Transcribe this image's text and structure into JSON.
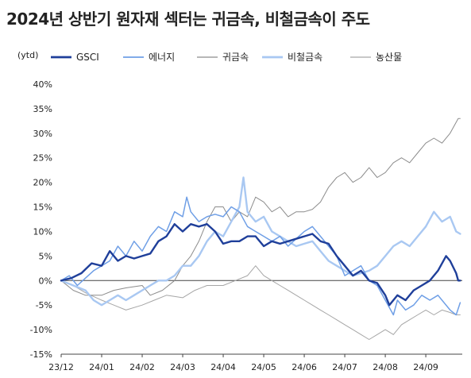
{
  "title": "2024년 상반기 원자재 섹터는 귀금속, 비철금속이 주도",
  "chart_data": {
    "type": "line",
    "y_unit": "(ytd)",
    "ylim": [
      -15,
      40
    ],
    "yticks": [
      -15,
      -10,
      -5,
      0,
      5,
      10,
      15,
      20,
      25,
      30,
      35,
      40
    ],
    "ytick_labels": [
      "-15%",
      "-10%",
      "-5%",
      "0%",
      "5%",
      "10%",
      "15%",
      "20%",
      "25%",
      "30%",
      "35%",
      "40%"
    ],
    "x_labels": [
      "23/12",
      "24/01",
      "24/02",
      "24/03",
      "24/04",
      "24/05",
      "24/06",
      "24/07",
      "24/08",
      "24/09"
    ],
    "x_label_positions": [
      0,
      1,
      2,
      3,
      4,
      5,
      6,
      7,
      8,
      9
    ],
    "xlim": [
      0,
      9.9
    ],
    "legend_position": "top",
    "series": [
      {
        "name": "GSCI",
        "color": "#1f3f9a",
        "width": 2.4,
        "points": [
          [
            0,
            0
          ],
          [
            0.25,
            0.5
          ],
          [
            0.5,
            1.5
          ],
          [
            0.75,
            3.5
          ],
          [
            1,
            3
          ],
          [
            1.2,
            6
          ],
          [
            1.4,
            4
          ],
          [
            1.6,
            5
          ],
          [
            1.8,
            4.5
          ],
          [
            2,
            5
          ],
          [
            2.2,
            5.5
          ],
          [
            2.4,
            8
          ],
          [
            2.6,
            9
          ],
          [
            2.8,
            11.5
          ],
          [
            3,
            10
          ],
          [
            3.2,
            11.5
          ],
          [
            3.4,
            11
          ],
          [
            3.6,
            11.5
          ],
          [
            3.8,
            10
          ],
          [
            4,
            7.5
          ],
          [
            4.2,
            8
          ],
          [
            4.4,
            8
          ],
          [
            4.6,
            9
          ],
          [
            4.8,
            9
          ],
          [
            5,
            7
          ],
          [
            5.2,
            8
          ],
          [
            5.4,
            7.5
          ],
          [
            5.6,
            8
          ],
          [
            5.8,
            8.5
          ],
          [
            6,
            9
          ],
          [
            6.2,
            9.5
          ],
          [
            6.4,
            8
          ],
          [
            6.6,
            7.5
          ],
          [
            6.8,
            5
          ],
          [
            7,
            3
          ],
          [
            7.2,
            1
          ],
          [
            7.4,
            2
          ],
          [
            7.6,
            0
          ],
          [
            7.8,
            -0.5
          ],
          [
            8,
            -3
          ],
          [
            8.1,
            -5
          ],
          [
            8.3,
            -3
          ],
          [
            8.5,
            -4
          ],
          [
            8.7,
            -2
          ],
          [
            8.9,
            -1
          ],
          [
            9.1,
            0
          ],
          [
            9.3,
            2
          ],
          [
            9.5,
            5
          ],
          [
            9.6,
            4
          ],
          [
            9.75,
            1.5
          ],
          [
            9.8,
            0
          ],
          [
            9.85,
            0
          ]
        ]
      },
      {
        "name": "에너지",
        "color": "#6f9fe6",
        "width": 1.5,
        "points": [
          [
            0,
            0
          ],
          [
            0.2,
            1
          ],
          [
            0.4,
            -1
          ],
          [
            0.6,
            0.5
          ],
          [
            0.8,
            2
          ],
          [
            1,
            3
          ],
          [
            1.2,
            4
          ],
          [
            1.4,
            7
          ],
          [
            1.6,
            5
          ],
          [
            1.8,
            8
          ],
          [
            2,
            6
          ],
          [
            2.2,
            9
          ],
          [
            2.4,
            11
          ],
          [
            2.6,
            10
          ],
          [
            2.8,
            14
          ],
          [
            3,
            13
          ],
          [
            3.1,
            17
          ],
          [
            3.2,
            14
          ],
          [
            3.4,
            12
          ],
          [
            3.6,
            13
          ],
          [
            3.8,
            13.5
          ],
          [
            4,
            13
          ],
          [
            4.2,
            15
          ],
          [
            4.4,
            14
          ],
          [
            4.6,
            11
          ],
          [
            4.8,
            10
          ],
          [
            5,
            9
          ],
          [
            5.2,
            8
          ],
          [
            5.4,
            9
          ],
          [
            5.6,
            7
          ],
          [
            5.8,
            8.5
          ],
          [
            6,
            10
          ],
          [
            6.2,
            11
          ],
          [
            6.4,
            9
          ],
          [
            6.6,
            7
          ],
          [
            6.8,
            5
          ],
          [
            7,
            1
          ],
          [
            7.2,
            2
          ],
          [
            7.4,
            3
          ],
          [
            7.6,
            0
          ],
          [
            7.8,
            -1
          ],
          [
            8,
            -4
          ],
          [
            8.2,
            -7
          ],
          [
            8.3,
            -4
          ],
          [
            8.5,
            -6
          ],
          [
            8.7,
            -5
          ],
          [
            8.9,
            -3
          ],
          [
            9.1,
            -4
          ],
          [
            9.3,
            -3
          ],
          [
            9.4,
            -4
          ],
          [
            9.6,
            -6
          ],
          [
            9.75,
            -7
          ],
          [
            9.85,
            -4.5
          ]
        ]
      },
      {
        "name": "귀금속",
        "color": "#8c8c8c",
        "width": 1,
        "points": [
          [
            0,
            0
          ],
          [
            0.3,
            -2
          ],
          [
            0.6,
            -3
          ],
          [
            1,
            -3
          ],
          [
            1.3,
            -2
          ],
          [
            1.6,
            -1.5
          ],
          [
            2,
            -1
          ],
          [
            2.2,
            -3
          ],
          [
            2.5,
            -2
          ],
          [
            2.8,
            0
          ],
          [
            3,
            3
          ],
          [
            3.2,
            5
          ],
          [
            3.4,
            8
          ],
          [
            3.6,
            12
          ],
          [
            3.8,
            15
          ],
          [
            4,
            15
          ],
          [
            4.2,
            12
          ],
          [
            4.4,
            14
          ],
          [
            4.6,
            13
          ],
          [
            4.8,
            17
          ],
          [
            5,
            16
          ],
          [
            5.2,
            14
          ],
          [
            5.4,
            15
          ],
          [
            5.6,
            13
          ],
          [
            5.8,
            14
          ],
          [
            6,
            14
          ],
          [
            6.2,
            14.5
          ],
          [
            6.4,
            16
          ],
          [
            6.6,
            19
          ],
          [
            6.8,
            21
          ],
          [
            7,
            22
          ],
          [
            7.2,
            20
          ],
          [
            7.4,
            21
          ],
          [
            7.6,
            23
          ],
          [
            7.8,
            21
          ],
          [
            8,
            22
          ],
          [
            8.2,
            24
          ],
          [
            8.4,
            25
          ],
          [
            8.6,
            24
          ],
          [
            8.8,
            26
          ],
          [
            9,
            28
          ],
          [
            9.2,
            29
          ],
          [
            9.4,
            28
          ],
          [
            9.6,
            30
          ],
          [
            9.8,
            33
          ],
          [
            9.85,
            33
          ]
        ]
      },
      {
        "name": "비철금속",
        "color": "#a9c8f2",
        "width": 2.4,
        "points": [
          [
            0,
            0
          ],
          [
            0.3,
            -1
          ],
          [
            0.6,
            -2
          ],
          [
            0.8,
            -4
          ],
          [
            1,
            -5
          ],
          [
            1.2,
            -4
          ],
          [
            1.4,
            -3
          ],
          [
            1.6,
            -4
          ],
          [
            1.8,
            -3
          ],
          [
            2,
            -2
          ],
          [
            2.2,
            -1
          ],
          [
            2.4,
            0
          ],
          [
            2.6,
            0
          ],
          [
            2.8,
            1
          ],
          [
            3,
            3
          ],
          [
            3.2,
            3
          ],
          [
            3.4,
            5
          ],
          [
            3.6,
            8
          ],
          [
            3.8,
            10
          ],
          [
            4,
            9
          ],
          [
            4.2,
            12
          ],
          [
            4.4,
            15
          ],
          [
            4.5,
            21
          ],
          [
            4.6,
            14
          ],
          [
            4.8,
            12
          ],
          [
            5,
            13
          ],
          [
            5.2,
            10
          ],
          [
            5.4,
            9
          ],
          [
            5.6,
            8
          ],
          [
            5.8,
            7
          ],
          [
            6,
            7.5
          ],
          [
            6.2,
            8
          ],
          [
            6.4,
            6
          ],
          [
            6.6,
            4
          ],
          [
            6.8,
            3
          ],
          [
            7,
            2
          ],
          [
            7.2,
            1
          ],
          [
            7.4,
            1.5
          ],
          [
            7.6,
            2
          ],
          [
            7.8,
            3
          ],
          [
            8,
            5
          ],
          [
            8.2,
            7
          ],
          [
            8.4,
            8
          ],
          [
            8.6,
            7
          ],
          [
            8.8,
            9
          ],
          [
            9,
            11
          ],
          [
            9.2,
            14
          ],
          [
            9.4,
            12
          ],
          [
            9.6,
            13
          ],
          [
            9.75,
            10
          ],
          [
            9.85,
            9.5
          ]
        ]
      },
      {
        "name": "농산물",
        "color": "#a6a6a6",
        "width": 1,
        "points": [
          [
            0,
            0
          ],
          [
            0.3,
            -1
          ],
          [
            0.6,
            -2.5
          ],
          [
            1,
            -4
          ],
          [
            1.3,
            -5
          ],
          [
            1.6,
            -6
          ],
          [
            2,
            -5
          ],
          [
            2.3,
            -4
          ],
          [
            2.6,
            -3
          ],
          [
            3,
            -3.5
          ],
          [
            3.3,
            -2
          ],
          [
            3.6,
            -1
          ],
          [
            4,
            -1
          ],
          [
            4.3,
            0
          ],
          [
            4.6,
            1
          ],
          [
            4.8,
            3
          ],
          [
            5,
            1
          ],
          [
            5.2,
            0
          ],
          [
            5.4,
            -1
          ],
          [
            5.6,
            -2
          ],
          [
            5.8,
            -3
          ],
          [
            6,
            -4
          ],
          [
            6.2,
            -5
          ],
          [
            6.4,
            -6
          ],
          [
            6.6,
            -7
          ],
          [
            6.8,
            -8
          ],
          [
            7,
            -9
          ],
          [
            7.2,
            -10
          ],
          [
            7.4,
            -11
          ],
          [
            7.6,
            -12
          ],
          [
            7.8,
            -11
          ],
          [
            8,
            -10
          ],
          [
            8.2,
            -11
          ],
          [
            8.4,
            -9
          ],
          [
            8.6,
            -8
          ],
          [
            8.8,
            -7
          ],
          [
            9,
            -6
          ],
          [
            9.2,
            -7
          ],
          [
            9.4,
            -6
          ],
          [
            9.6,
            -6.5
          ],
          [
            9.75,
            -7
          ],
          [
            9.85,
            -7
          ]
        ]
      }
    ]
  }
}
